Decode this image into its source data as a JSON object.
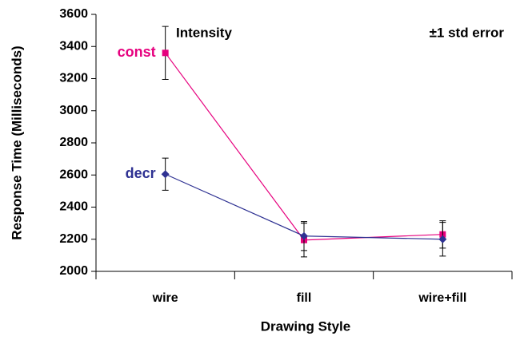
{
  "chart_data": {
    "type": "line",
    "xlabel": "Drawing Style",
    "ylabel": "Response Time (Milliseconds)",
    "annotations": [
      "Intensity",
      "±1 std error"
    ],
    "categories": [
      "wire",
      "fill",
      "wire+fill"
    ],
    "series": [
      {
        "name": "const",
        "color": "#e6007e",
        "marker": "square",
        "values": [
          3360,
          2195,
          2230
        ],
        "errors": [
          165,
          105,
          85
        ]
      },
      {
        "name": "decr",
        "color": "#2e3192",
        "marker": "diamond",
        "values": [
          2605,
          2220,
          2200
        ],
        "errors": [
          100,
          90,
          105
        ]
      }
    ],
    "ylim": [
      2000,
      3600
    ],
    "yticks": [
      2000,
      2200,
      2400,
      2600,
      2800,
      3000,
      3200,
      3400,
      3600
    ],
    "grid": false
  }
}
